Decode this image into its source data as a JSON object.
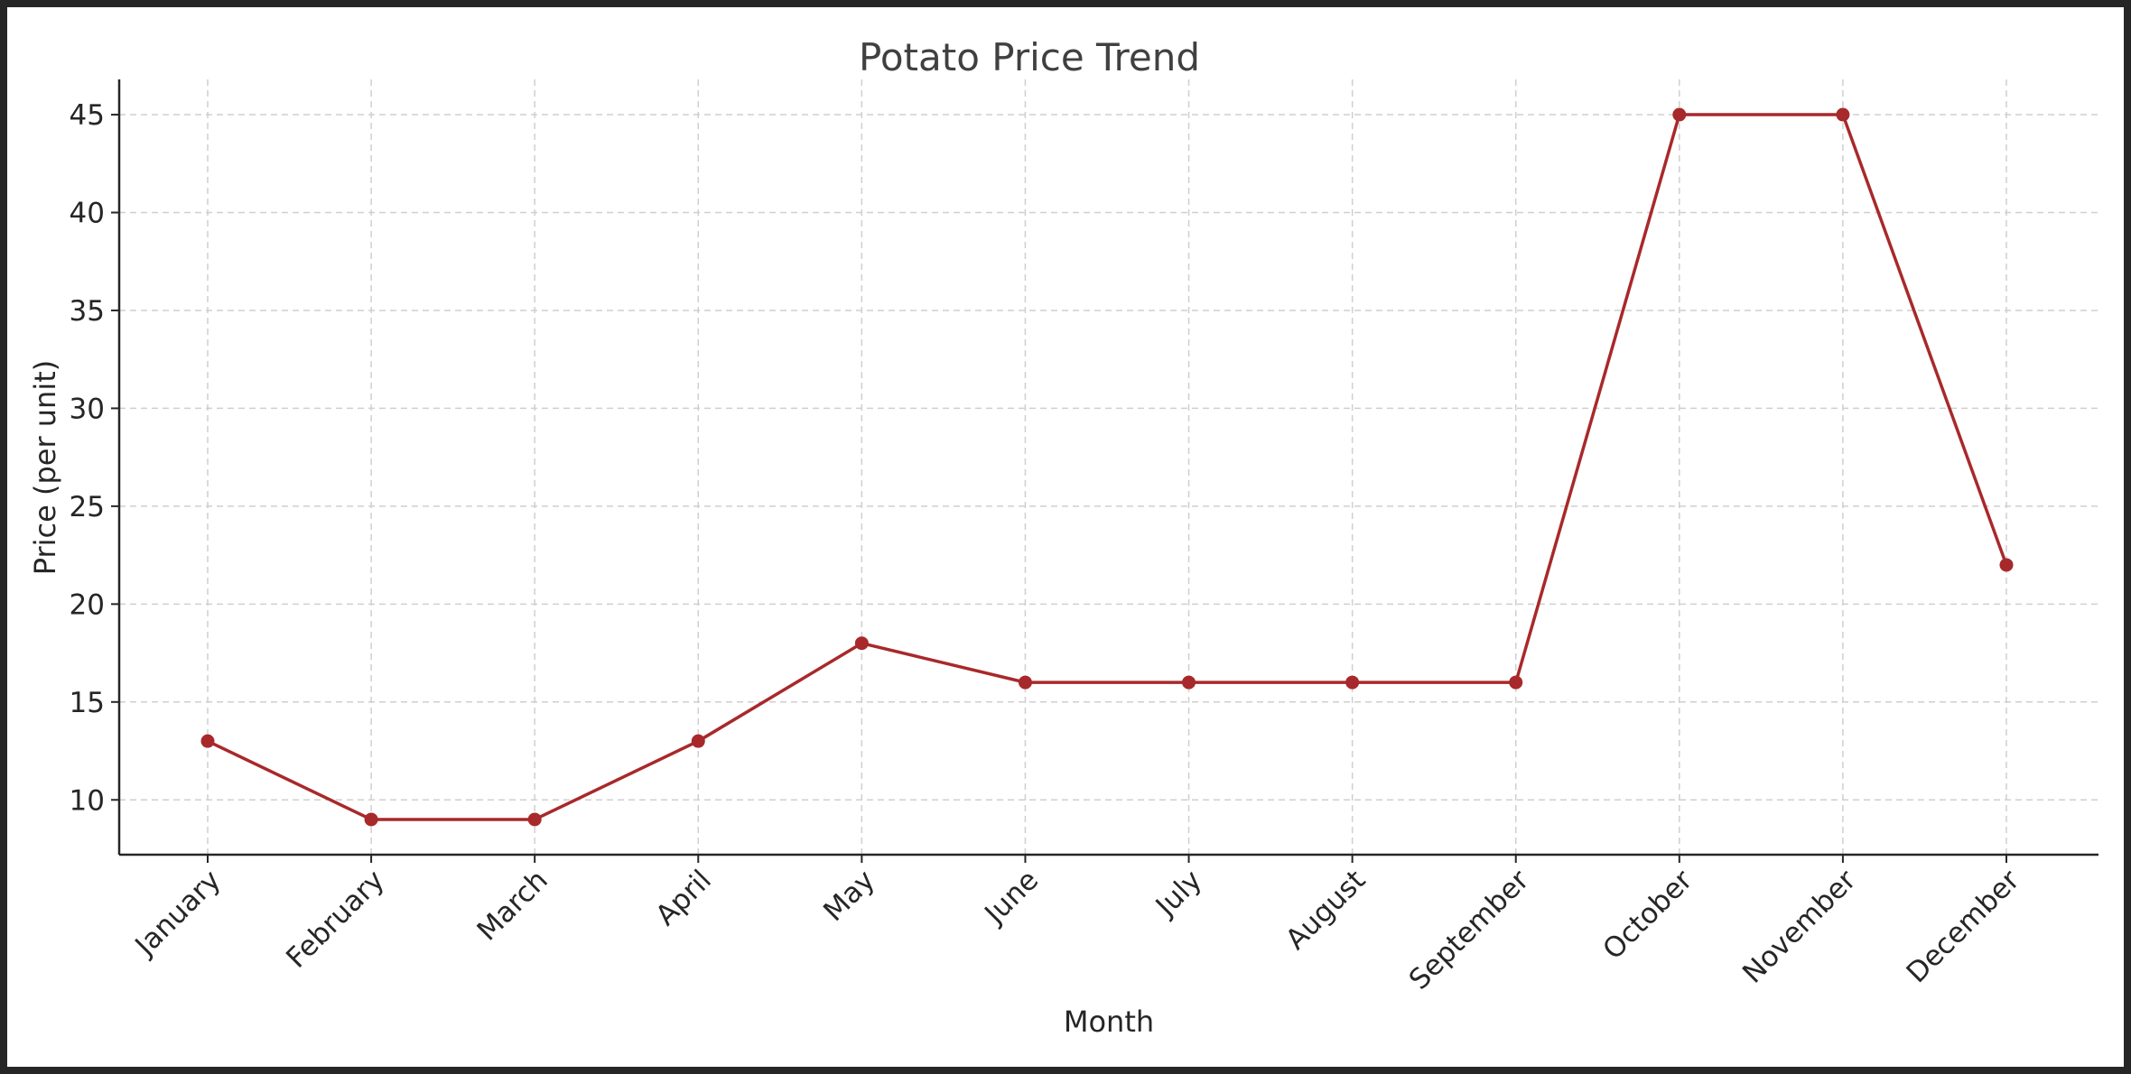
{
  "chart_data": {
    "type": "line",
    "title": "Potato Price Trend",
    "xlabel": "Month",
    "ylabel": "Price (per unit)",
    "categories": [
      "January",
      "February",
      "March",
      "April",
      "May",
      "June",
      "July",
      "August",
      "September",
      "October",
      "November",
      "December"
    ],
    "series": [
      {
        "values": [
          13,
          9,
          9,
          13,
          18,
          16,
          16,
          16,
          16,
          45,
          45,
          22
        ],
        "color": "#a8292b"
      }
    ],
    "yticks": [
      10,
      15,
      20,
      25,
      30,
      35,
      40,
      45
    ],
    "ylim": [
      7.2,
      46.8
    ],
    "grid": true,
    "marker": "circle"
  }
}
